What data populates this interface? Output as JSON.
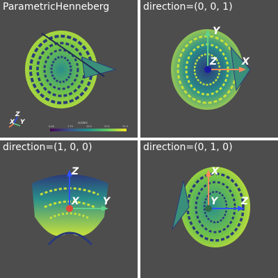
{
  "viewports": [
    {
      "title": "ParametricHenneberg"
    },
    {
      "title": "direction=(0, 0, 1)",
      "axes": [
        "Y",
        "Z",
        "X"
      ]
    },
    {
      "title": "direction=(1, 0, 0)",
      "axes": [
        "Z",
        "X",
        "Y"
      ]
    },
    {
      "title": "direction=(0, 1, 0)",
      "axes": [
        "X",
        "Y",
        "Z"
      ]
    }
  ],
  "orientation_widget": [
    "Z",
    "X",
    "Y"
  ],
  "scalar_bar": {
    "title": "scalars",
    "ticks": [
      "0.00",
      "7.75",
      "15.5",
      "23.2",
      "31.0"
    ]
  },
  "colors": {
    "background": "#4d4d4d",
    "x_axis": "#ff8c5a",
    "y_axis": "#5fd28a",
    "z_axis": "#3050ff",
    "center_dot_blue": "#1a1aa0",
    "center_dot_red": "#e04a3a",
    "center_dot_green": "#2f6b4a",
    "surface_dark": "#2b3a7a",
    "surface_mid": "#2a8f8a",
    "surface_light": "#c9e23a"
  }
}
